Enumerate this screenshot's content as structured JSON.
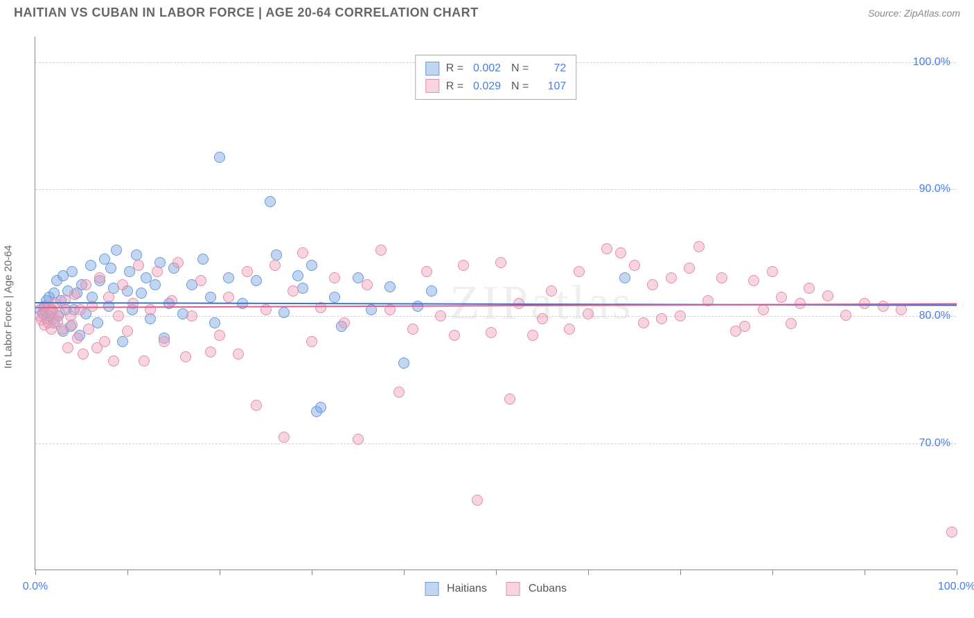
{
  "header": {
    "title": "HAITIAN VS CUBAN IN LABOR FORCE | AGE 20-64 CORRELATION CHART",
    "source": "Source: ZipAtlas.com"
  },
  "chart": {
    "type": "scatter",
    "watermark": "ZIPatlas",
    "y_axis_title": "In Labor Force | Age 20-64",
    "xlim": [
      0,
      100
    ],
    "ylim": [
      60,
      102
    ],
    "x_ticks": [
      0,
      10,
      20,
      30,
      40,
      50,
      60,
      70,
      80,
      90,
      100
    ],
    "x_tick_labels_shown": {
      "0": "0.0%",
      "100": "100.0%"
    },
    "y_gridlines": [
      70,
      80,
      90,
      100
    ],
    "y_tick_labels": {
      "70": "70.0%",
      "80": "80.0%",
      "90": "90.0%",
      "100": "100.0%"
    },
    "background_color": "#ffffff",
    "grid_color": "#d0d0d0",
    "axis_color": "#888888",
    "tick_label_color": "#4a7de0",
    "point_radius": 8,
    "series": [
      {
        "name": "Haitians",
        "fill_color": "rgba(120,165,225,0.45)",
        "stroke_color": "#6a9ad8",
        "trend_color": "#3a74c8",
        "r": "0.002",
        "n": "72",
        "trend_y_start": 81.2,
        "trend_y_end": 81.0,
        "points": [
          [
            0.5,
            80.5
          ],
          [
            0.8,
            80.2
          ],
          [
            1.0,
            80.8
          ],
          [
            1.2,
            79.8
          ],
          [
            1.2,
            81.2
          ],
          [
            1.5,
            80.0
          ],
          [
            1.5,
            81.5
          ],
          [
            1.8,
            80.5
          ],
          [
            2.0,
            81.8
          ],
          [
            2.0,
            79.5
          ],
          [
            2.3,
            82.8
          ],
          [
            2.5,
            80.0
          ],
          [
            2.8,
            81.2
          ],
          [
            3.0,
            83.2
          ],
          [
            3.0,
            78.8
          ],
          [
            3.3,
            80.5
          ],
          [
            3.5,
            82.0
          ],
          [
            3.8,
            79.2
          ],
          [
            4.0,
            83.5
          ],
          [
            4.2,
            80.5
          ],
          [
            4.5,
            81.8
          ],
          [
            4.8,
            78.5
          ],
          [
            5.0,
            82.5
          ],
          [
            5.5,
            80.2
          ],
          [
            6.0,
            84.0
          ],
          [
            6.2,
            81.5
          ],
          [
            6.8,
            79.5
          ],
          [
            7.0,
            82.8
          ],
          [
            7.5,
            84.5
          ],
          [
            8.0,
            80.8
          ],
          [
            8.2,
            83.8
          ],
          [
            8.5,
            82.2
          ],
          [
            8.8,
            85.2
          ],
          [
            9.5,
            78.0
          ],
          [
            10.0,
            82.0
          ],
          [
            10.2,
            83.5
          ],
          [
            10.5,
            80.5
          ],
          [
            11.0,
            84.8
          ],
          [
            11.5,
            81.8
          ],
          [
            12.0,
            83.0
          ],
          [
            12.5,
            79.8
          ],
          [
            13.0,
            82.5
          ],
          [
            13.5,
            84.2
          ],
          [
            14.0,
            78.3
          ],
          [
            14.5,
            81.0
          ],
          [
            15.0,
            83.8
          ],
          [
            16.0,
            80.2
          ],
          [
            17.0,
            82.5
          ],
          [
            18.2,
            84.5
          ],
          [
            19.0,
            81.5
          ],
          [
            19.5,
            79.5
          ],
          [
            20.0,
            92.5
          ],
          [
            21.0,
            83.0
          ],
          [
            22.5,
            81.0
          ],
          [
            24.0,
            82.8
          ],
          [
            25.5,
            89.0
          ],
          [
            26.2,
            84.8
          ],
          [
            27.0,
            80.3
          ],
          [
            28.5,
            83.2
          ],
          [
            29.0,
            82.2
          ],
          [
            30.0,
            84.0
          ],
          [
            30.5,
            72.5
          ],
          [
            31.0,
            72.8
          ],
          [
            32.5,
            81.5
          ],
          [
            33.2,
            79.2
          ],
          [
            35.0,
            83.0
          ],
          [
            36.5,
            80.5
          ],
          [
            38.5,
            82.3
          ],
          [
            40.0,
            76.3
          ],
          [
            41.5,
            80.8
          ],
          [
            43.0,
            82.0
          ],
          [
            64.0,
            83.0
          ]
        ]
      },
      {
        "name": "Cubans",
        "fill_color": "rgba(238,160,185,0.45)",
        "stroke_color": "#e38fab",
        "trend_color": "#e15c8c",
        "r": "0.029",
        "n": "107",
        "trend_y_start": 80.6,
        "trend_y_end": 80.9,
        "points": [
          [
            0.5,
            80.0
          ],
          [
            0.7,
            79.7
          ],
          [
            0.9,
            80.6
          ],
          [
            1.0,
            79.3
          ],
          [
            1.2,
            80.3
          ],
          [
            1.4,
            79.5
          ],
          [
            1.5,
            80.8
          ],
          [
            1.7,
            79.0
          ],
          [
            1.9,
            80.4
          ],
          [
            2.0,
            79.8
          ],
          [
            2.2,
            81.0
          ],
          [
            2.4,
            79.6
          ],
          [
            2.6,
            80.3
          ],
          [
            2.9,
            79.0
          ],
          [
            3.2,
            81.3
          ],
          [
            3.5,
            77.5
          ],
          [
            3.8,
            80.0
          ],
          [
            4.0,
            79.3
          ],
          [
            4.3,
            81.7
          ],
          [
            4.6,
            78.3
          ],
          [
            4.9,
            80.5
          ],
          [
            5.2,
            77.0
          ],
          [
            5.5,
            82.5
          ],
          [
            5.8,
            79.0
          ],
          [
            6.2,
            80.8
          ],
          [
            6.7,
            77.5
          ],
          [
            7.0,
            83.0
          ],
          [
            7.5,
            78.0
          ],
          [
            8.0,
            81.5
          ],
          [
            8.5,
            76.5
          ],
          [
            9.0,
            80.0
          ],
          [
            9.5,
            82.5
          ],
          [
            10.0,
            78.8
          ],
          [
            10.6,
            81.0
          ],
          [
            11.2,
            84.0
          ],
          [
            11.8,
            76.5
          ],
          [
            12.5,
            80.5
          ],
          [
            13.2,
            83.5
          ],
          [
            14.0,
            78.0
          ],
          [
            14.8,
            81.2
          ],
          [
            15.5,
            84.2
          ],
          [
            16.3,
            76.8
          ],
          [
            17.0,
            80.0
          ],
          [
            18.0,
            82.8
          ],
          [
            19.0,
            77.2
          ],
          [
            20.0,
            78.5
          ],
          [
            21.0,
            81.5
          ],
          [
            22.0,
            77.0
          ],
          [
            23.0,
            83.5
          ],
          [
            24.0,
            73.0
          ],
          [
            25.0,
            80.5
          ],
          [
            26.0,
            84.0
          ],
          [
            27.0,
            70.5
          ],
          [
            28.0,
            82.0
          ],
          [
            29.0,
            85.0
          ],
          [
            30.0,
            78.0
          ],
          [
            31.0,
            80.7
          ],
          [
            32.5,
            83.0
          ],
          [
            33.5,
            79.5
          ],
          [
            35.0,
            70.3
          ],
          [
            36.0,
            82.5
          ],
          [
            37.5,
            85.2
          ],
          [
            38.5,
            80.5
          ],
          [
            39.5,
            74.0
          ],
          [
            41.0,
            79.0
          ],
          [
            42.5,
            83.5
          ],
          [
            44.0,
            80.0
          ],
          [
            45.5,
            78.5
          ],
          [
            46.5,
            84.0
          ],
          [
            48.0,
            65.5
          ],
          [
            49.5,
            78.7
          ],
          [
            50.5,
            84.2
          ],
          [
            51.5,
            73.5
          ],
          [
            52.5,
            81.0
          ],
          [
            54.0,
            78.5
          ],
          [
            55.0,
            79.8
          ],
          [
            56.0,
            82.0
          ],
          [
            58.0,
            79.0
          ],
          [
            59.0,
            83.5
          ],
          [
            60.0,
            80.2
          ],
          [
            62.0,
            85.3
          ],
          [
            63.5,
            85.0
          ],
          [
            65.0,
            84.0
          ],
          [
            66.0,
            79.5
          ],
          [
            67.0,
            82.5
          ],
          [
            68.0,
            79.8
          ],
          [
            69.0,
            83.0
          ],
          [
            70.0,
            80.0
          ],
          [
            71.0,
            83.8
          ],
          [
            72.0,
            85.5
          ],
          [
            73.0,
            81.2
          ],
          [
            74.5,
            83.0
          ],
          [
            76.0,
            78.8
          ],
          [
            77.0,
            79.2
          ],
          [
            78.0,
            82.8
          ],
          [
            79.0,
            80.5
          ],
          [
            80.0,
            83.5
          ],
          [
            81.0,
            81.5
          ],
          [
            82.0,
            79.4
          ],
          [
            83.0,
            81.0
          ],
          [
            84.0,
            82.2
          ],
          [
            86.0,
            81.6
          ],
          [
            88.0,
            80.1
          ],
          [
            90.0,
            81.0
          ],
          [
            92.0,
            80.8
          ],
          [
            94.0,
            80.5
          ],
          [
            99.5,
            63.0
          ]
        ]
      }
    ],
    "bottom_legend": [
      {
        "label": "Haitians",
        "fill": "rgba(120,165,225,0.45)",
        "stroke": "#6a9ad8"
      },
      {
        "label": "Cubans",
        "fill": "rgba(238,160,185,0.45)",
        "stroke": "#e38fab"
      }
    ]
  }
}
